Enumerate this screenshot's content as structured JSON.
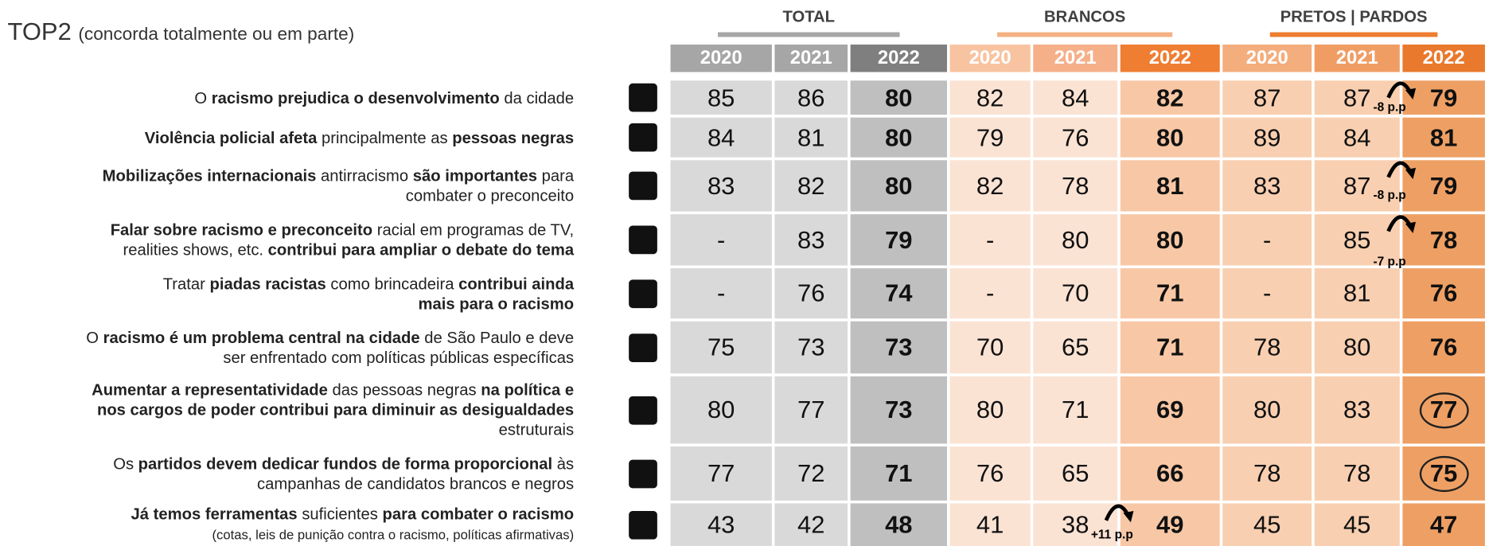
{
  "title": "TOP2",
  "subtitle": "(concorda totalmente ou em parte)",
  "groups": [
    {
      "name": "TOTAL",
      "years": [
        "2020",
        "2021",
        "2022"
      ]
    },
    {
      "name": "BRANCOS",
      "years": [
        "2020",
        "2021",
        "2022"
      ]
    },
    {
      "name": "PRETOS | PARDOS",
      "years": [
        "2020",
        "2021",
        "2022"
      ]
    }
  ],
  "rows": [
    {
      "label": [
        [
          {
            "text": "O "
          },
          {
            "text": "racismo prejudica o desenvolvimento",
            "bold": true
          },
          {
            "text": " da cidade"
          }
        ]
      ],
      "values": [
        [
          85,
          86,
          80
        ],
        [
          82,
          84,
          82
        ],
        [
          87,
          87,
          79
        ]
      ]
    },
    {
      "label": [
        [
          {
            "text": "Violência policial afeta",
            "bold": true
          },
          {
            "text": " principalmente as "
          },
          {
            "text": "pessoas negras",
            "bold": true
          }
        ]
      ],
      "values": [
        [
          84,
          81,
          80
        ],
        [
          79,
          76,
          80
        ],
        [
          89,
          84,
          81
        ]
      ]
    },
    {
      "label": [
        [
          {
            "text": "Mobilizações internacionais",
            "bold": true
          },
          {
            "text": " antirracismo "
          },
          {
            "text": "são importantes",
            "bold": true
          },
          {
            "text": " para"
          }
        ],
        [
          {
            "text": "combater o preconceito"
          }
        ]
      ],
      "values": [
        [
          83,
          82,
          80
        ],
        [
          82,
          78,
          81
        ],
        [
          83,
          87,
          79
        ]
      ]
    },
    {
      "label": [
        [
          {
            "text": "Falar sobre racismo e preconceito",
            "bold": true
          },
          {
            "text": " racial em programas de TV,"
          }
        ],
        [
          {
            "text": "realities shows, etc. "
          },
          {
            "text": "contribui para ampliar o debate do tema",
            "bold": true
          }
        ]
      ],
      "values": [
        [
          "-",
          83,
          79
        ],
        [
          "-",
          80,
          80
        ],
        [
          "-",
          85,
          78
        ]
      ]
    },
    {
      "label": [
        [
          {
            "text": "Tratar "
          },
          {
            "text": "piadas racistas",
            "bold": true
          },
          {
            "text": " como  brincadeira "
          },
          {
            "text": "contribui ainda",
            "bold": true
          }
        ],
        [
          {
            "text": "mais para o racismo",
            "bold": true
          }
        ]
      ],
      "values": [
        [
          "-",
          76,
          74
        ],
        [
          "-",
          70,
          71
        ],
        [
          "-",
          81,
          76
        ]
      ]
    },
    {
      "label": [
        [
          {
            "text": "O "
          },
          {
            "text": "racismo é um problema central na cidade",
            "bold": true
          },
          {
            "text": " de São Paulo e deve"
          }
        ],
        [
          {
            "text": "ser enfrentado com políticas públicas específicas"
          }
        ]
      ],
      "values": [
        [
          75,
          73,
          73
        ],
        [
          70,
          65,
          71
        ],
        [
          78,
          80,
          76
        ]
      ]
    },
    {
      "label": [
        [
          {
            "text": "Aumentar a representatividade",
            "bold": true
          },
          {
            "text": " das pessoas negras "
          },
          {
            "text": "na política e",
            "bold": true
          }
        ],
        [
          {
            "text": "nos cargos de poder contribui para diminuir as desigualdades",
            "bold": true
          }
        ],
        [
          {
            "text": "estruturais"
          }
        ]
      ],
      "values": [
        [
          80,
          77,
          73
        ],
        [
          80,
          71,
          69
        ],
        [
          80,
          83,
          77
        ]
      ]
    },
    {
      "label": [
        [
          {
            "text": "Os "
          },
          {
            "text": "partidos devem dedicar fundos de forma proporcional",
            "bold": true
          },
          {
            "text": " às"
          }
        ],
        [
          {
            "text": "campanhas de candidatos brancos e negros"
          }
        ]
      ],
      "values": [
        [
          77,
          72,
          71
        ],
        [
          76,
          65,
          66
        ],
        [
          78,
          78,
          75
        ]
      ]
    },
    {
      "label": [
        [
          {
            "text": "Já temos ferramentas",
            "bold": true
          },
          {
            "text": " suficientes "
          },
          {
            "text": "para combater o racismo",
            "bold": true
          }
        ],
        [
          {
            "text": "(cotas, leis de punição contra o racismo, políticas afirmativas)",
            "small": true
          }
        ]
      ],
      "values": [
        [
          43,
          42,
          48
        ],
        [
          41,
          38,
          49
        ],
        [
          45,
          45,
          47
        ]
      ]
    }
  ],
  "annotations": [
    {
      "row": 0,
      "group": 2,
      "text": "-8 p.p"
    },
    {
      "row": 2,
      "group": 2,
      "text": "-8 p.p"
    },
    {
      "row": 3,
      "group": 2,
      "text": "-7 p.p",
      "below": true
    },
    {
      "row": 8,
      "group": 1,
      "text": "+11 p.p"
    }
  ],
  "circles": [
    {
      "row": 6,
      "group": 2
    },
    {
      "row": 7,
      "group": 2
    }
  ]
}
